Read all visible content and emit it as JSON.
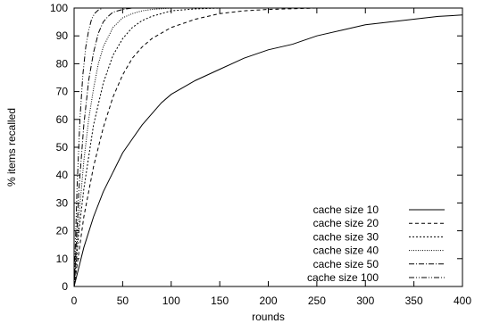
{
  "chart_data": {
    "type": "line",
    "title": "",
    "xlabel": "rounds",
    "ylabel": "% items recalled",
    "xlim": [
      0,
      400
    ],
    "ylim": [
      0,
      100
    ],
    "xticks": [
      0,
      50,
      100,
      150,
      200,
      250,
      300,
      350,
      400
    ],
    "yticks": [
      0,
      10,
      20,
      30,
      40,
      50,
      60,
      70,
      80,
      90,
      100
    ],
    "grid": false,
    "legend_position": "bottom-right",
    "series": [
      {
        "name": "cache size 10",
        "dash": "solid",
        "x": [
          0,
          10,
          20,
          30,
          40,
          50,
          60,
          70,
          80,
          90,
          100,
          125,
          150,
          175,
          200,
          225,
          250,
          275,
          300,
          325,
          350,
          375,
          400
        ],
        "y": [
          0,
          14,
          25,
          34,
          41,
          48,
          53,
          58,
          62,
          66,
          69,
          74,
          78,
          82,
          85,
          87,
          90,
          92,
          94,
          95,
          96,
          97,
          97.5
        ]
      },
      {
        "name": "cache size 20",
        "dash": "dashed",
        "x": [
          0,
          10,
          20,
          30,
          40,
          50,
          60,
          70,
          80,
          90,
          100,
          125,
          150,
          175,
          200,
          250,
          300,
          400
        ],
        "y": [
          0,
          25,
          43,
          57,
          68,
          76,
          82,
          86,
          89,
          91,
          93,
          96,
          98,
          99,
          99.5,
          100,
          100,
          100
        ]
      },
      {
        "name": "cache size 30",
        "dash": "dotted",
        "x": [
          0,
          5,
          10,
          20,
          30,
          40,
          50,
          60,
          70,
          80,
          90,
          100,
          125,
          150,
          200,
          400
        ],
        "y": [
          0,
          20,
          35,
          58,
          73,
          83,
          89,
          93,
          95.5,
          97,
          98,
          99,
          99.7,
          100,
          100,
          100
        ]
      },
      {
        "name": "cache size 40",
        "dash": "fine-dotted",
        "x": [
          0,
          5,
          10,
          15,
          20,
          25,
          30,
          40,
          50,
          60,
          70,
          80,
          100,
          150,
          400
        ],
        "y": [
          0,
          25,
          45,
          60,
          71,
          80,
          86,
          93,
          96.5,
          98,
          99,
          99.5,
          100,
          100,
          100
        ]
      },
      {
        "name": "cache size 50",
        "dash": "dash-dot",
        "x": [
          0,
          5,
          10,
          15,
          20,
          25,
          30,
          35,
          40,
          50,
          60,
          80,
          400
        ],
        "y": [
          0,
          35,
          58,
          74,
          84,
          91,
          95,
          97,
          98.5,
          99.5,
          100,
          100,
          100
        ]
      },
      {
        "name": "cache size 100",
        "dash": "dash-dot-dot",
        "x": [
          0,
          3,
          6,
          9,
          12,
          15,
          18,
          21,
          25,
          30,
          40,
          400
        ],
        "y": [
          0,
          35,
          60,
          76,
          86,
          92,
          96,
          98,
          99.3,
          100,
          100,
          100
        ]
      }
    ]
  }
}
